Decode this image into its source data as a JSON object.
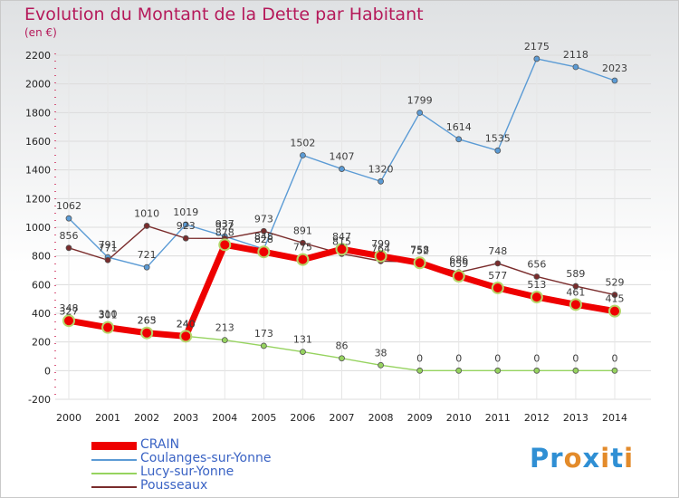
{
  "header": {
    "title": "Evolution du Montant de la Dette par Habitant",
    "unit": "(en €)"
  },
  "logo": {
    "letters": [
      {
        "ch": "P",
        "color": "#2f8fd4"
      },
      {
        "ch": "r",
        "color": "#2f8fd4"
      },
      {
        "ch": "o",
        "color": "#e38b2b"
      },
      {
        "ch": "x",
        "color": "#2f8fd4"
      },
      {
        "ch": "i",
        "color": "#e38b2b"
      },
      {
        "ch": "t",
        "color": "#2f8fd4"
      },
      {
        "ch": "i",
        "color": "#e38b2b"
      }
    ]
  },
  "chart_data": {
    "type": "line",
    "x": [
      2000,
      2001,
      2002,
      2003,
      2004,
      2005,
      2006,
      2007,
      2008,
      2009,
      2010,
      2011,
      2012,
      2013,
      2014
    ],
    "ylim": [
      -200,
      2200
    ],
    "yticks": [
      -200,
      0,
      200,
      400,
      600,
      800,
      1000,
      1200,
      1400,
      1600,
      1800,
      2000,
      2200
    ],
    "grid": true,
    "legend_position": "bottom-left",
    "series": [
      {
        "name": "CRAIN",
        "color": "#ee0000",
        "bold": true,
        "values": [
          348,
          301,
          263,
          240,
          878,
          828,
          775,
          847,
          799,
          752,
          659,
          577,
          513,
          461,
          415
        ]
      },
      {
        "name": "Coulanges-sur-Yonne",
        "color": "#5b9bd5",
        "values": [
          1062,
          791,
          721,
          1019,
          937,
          848,
          1502,
          1407,
          1320,
          1799,
          1614,
          1535,
          2175,
          2118,
          2023
        ]
      },
      {
        "name": "Lucy-sur-Yonne",
        "color": "#96d35f",
        "values": [
          327,
          310,
          265,
          240,
          213,
          173,
          131,
          86,
          38,
          0,
          0,
          0,
          0,
          0,
          0
        ]
      },
      {
        "name": "Pousseaux",
        "color": "#7a2c2c",
        "values": [
          856,
          771,
          1010,
          923,
          922,
          973,
          891,
          815,
          764,
          758,
          686,
          748,
          656,
          589,
          529
        ]
      }
    ]
  }
}
